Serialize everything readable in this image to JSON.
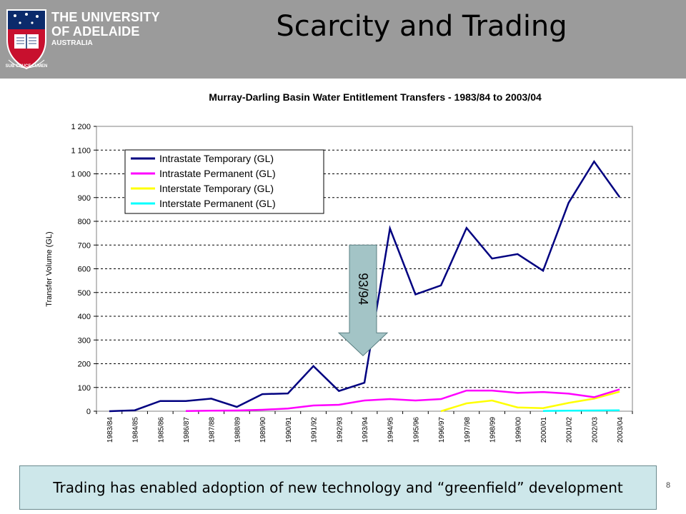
{
  "header": {
    "university_line1": "THE UNIVERSITY",
    "university_line2": "OF ADELAIDE",
    "university_line3": "AUSTRALIA",
    "motto": "SUB CRUCE LUMEN"
  },
  "slide": {
    "title": "Scarcity and Trading",
    "caption": "Trading has enabled adoption of new technology and “greenfield” development",
    "page_number": "8"
  },
  "annotation": {
    "label": "93/94",
    "at_category": "1993/94",
    "y_top": 700,
    "y_bottom": 330,
    "color": "#a3c4c6"
  },
  "chart_data": {
    "type": "line",
    "title": "Murray-Darling Basin Water Entitlement Transfers - 1983/84 to 2003/04",
    "xlabel": "",
    "ylabel": "Transfer Volume (GL)",
    "ylim": [
      0,
      1200
    ],
    "ytick_step": 100,
    "ytick_labels": [
      "0",
      "100",
      "200",
      "300",
      "400",
      "500",
      "600",
      "700",
      "800",
      "900",
      "1 000",
      "1 100",
      "1 200"
    ],
    "grid": "horizontal dashed",
    "legend_position": "top-left",
    "categories": [
      "1983/84",
      "1984/85",
      "1985/86",
      "1986/87",
      "1987/88",
      "1988/89",
      "1989/90",
      "1990/91",
      "1991/92",
      "1992/93",
      "1993/94",
      "1994/95",
      "1995/96",
      "1996/97",
      "1997/98",
      "1998/99",
      "1999/00",
      "2000/01",
      "2001/02",
      "2002/03",
      "2003/04"
    ],
    "series": [
      {
        "name": "Intrastate Temporary (GL)",
        "color": "#000080",
        "values": [
          0,
          4,
          43,
          43,
          53,
          18,
          72,
          75,
          190,
          85,
          120,
          770,
          492,
          530,
          772,
          643,
          662,
          592,
          878,
          1052,
          902
        ]
      },
      {
        "name": "Intrastate Permanent (GL)",
        "color": "#ff00ff",
        "values": [
          null,
          null,
          null,
          1,
          2,
          3,
          6,
          11,
          24,
          27,
          45,
          51,
          45,
          51,
          87,
          87,
          77,
          81,
          74,
          59,
          92
        ]
      },
      {
        "name": "Interstate Temporary (GL)",
        "color": "#ffff00",
        "values": [
          null,
          null,
          null,
          null,
          null,
          null,
          null,
          null,
          null,
          null,
          null,
          null,
          null,
          0,
          33,
          45,
          16,
          13,
          35,
          53,
          82
        ]
      },
      {
        "name": "Interstate Permanent (GL)",
        "color": "#00ffff",
        "values": [
          null,
          null,
          null,
          null,
          null,
          null,
          null,
          null,
          null,
          null,
          null,
          null,
          null,
          null,
          null,
          null,
          null,
          1,
          2,
          3,
          4
        ]
      }
    ]
  }
}
